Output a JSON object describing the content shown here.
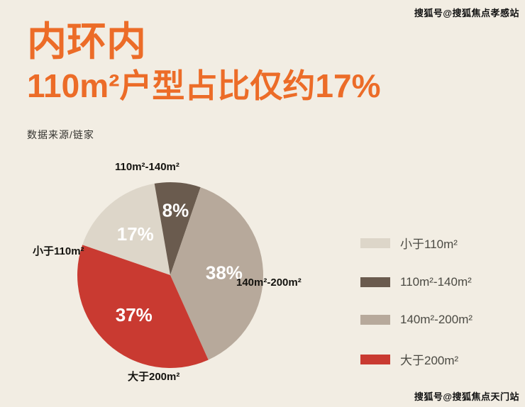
{
  "header": {
    "title_line1": "内环内",
    "title_line2": "110m²户型占比仅约17%",
    "source": "数据来源/链家"
  },
  "watermarks": {
    "top": "搜狐号@搜狐焦点孝感站",
    "bottom": "搜狐号@搜狐焦点天门站"
  },
  "colors": {
    "background": "#f2ede3",
    "accent_orange": "#ec6c28",
    "text_dark": "#14130f",
    "pct_label_color": "#ffffff"
  },
  "chart_data": {
    "type": "pie",
    "title": "110m²户型占比仅约17%",
    "source": "数据来源/链家",
    "legend_position": "right",
    "start_angle_deg": 289,
    "direction": "clockwise",
    "slices": [
      {
        "label": "小于110m²",
        "value": 17,
        "pct_label": "17%",
        "color": "#ddd6c9"
      },
      {
        "label": "110m²-140m²",
        "value": 8,
        "pct_label": "8%",
        "color": "#6a5b4e"
      },
      {
        "label": "140m²-200m²",
        "value": 38,
        "pct_label": "38%",
        "color": "#b7a99b"
      },
      {
        "label": "大于200m²",
        "value": 37,
        "pct_label": "37%",
        "color": "#c93a31"
      }
    ]
  }
}
